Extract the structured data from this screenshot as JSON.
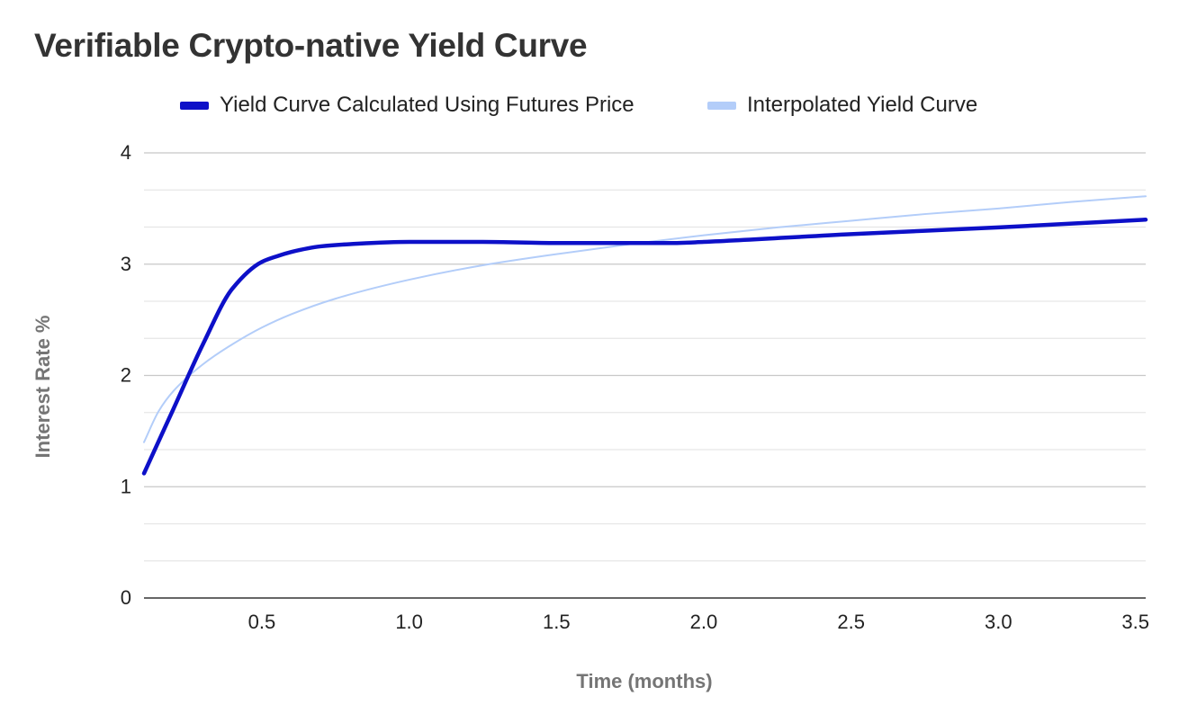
{
  "chart_data": {
    "type": "line",
    "title": "Verifiable Crypto-native Yield Curve",
    "xlabel": "Time (months)",
    "ylabel": "Interest Rate %",
    "xlim": [
      0.1,
      3.5
    ],
    "ylim": [
      0,
      4
    ],
    "x_ticks": [
      "0.5",
      "1.0",
      "1.5",
      "2.0",
      "2.5",
      "3.0",
      "3.5"
    ],
    "y_ticks": [
      "0",
      "1",
      "2",
      "3",
      "4"
    ],
    "grid": true,
    "legend_position": "top",
    "series": [
      {
        "name": "Yield Curve Calculated Using Futures Price",
        "color": "#0d10c8",
        "x": [
          0.1,
          0.2,
          0.3,
          0.4,
          0.5,
          0.55,
          0.6,
          0.7,
          0.8,
          1.0,
          1.25,
          1.5,
          1.75,
          1.9,
          2.0,
          2.5,
          3.0,
          3.5
        ],
        "y": [
          1.12,
          1.7,
          2.28,
          2.78,
          3.02,
          3.07,
          3.11,
          3.16,
          3.18,
          3.2,
          3.2,
          3.19,
          3.19,
          3.19,
          3.2,
          3.27,
          3.33,
          3.4
        ]
      },
      {
        "name": "Interpolated Yield Curve",
        "color": "#b3cdf9",
        "x": [
          0.1,
          0.15,
          0.2,
          0.3,
          0.4,
          0.5,
          0.6,
          0.75,
          1.0,
          1.25,
          1.5,
          1.75,
          2.0,
          2.25,
          2.5,
          2.75,
          3.0,
          3.25,
          3.5
        ],
        "y": [
          1.4,
          1.68,
          1.86,
          2.1,
          2.28,
          2.43,
          2.55,
          2.69,
          2.86,
          2.99,
          3.09,
          3.18,
          3.26,
          3.33,
          3.39,
          3.45,
          3.5,
          3.56,
          3.61
        ]
      }
    ]
  }
}
